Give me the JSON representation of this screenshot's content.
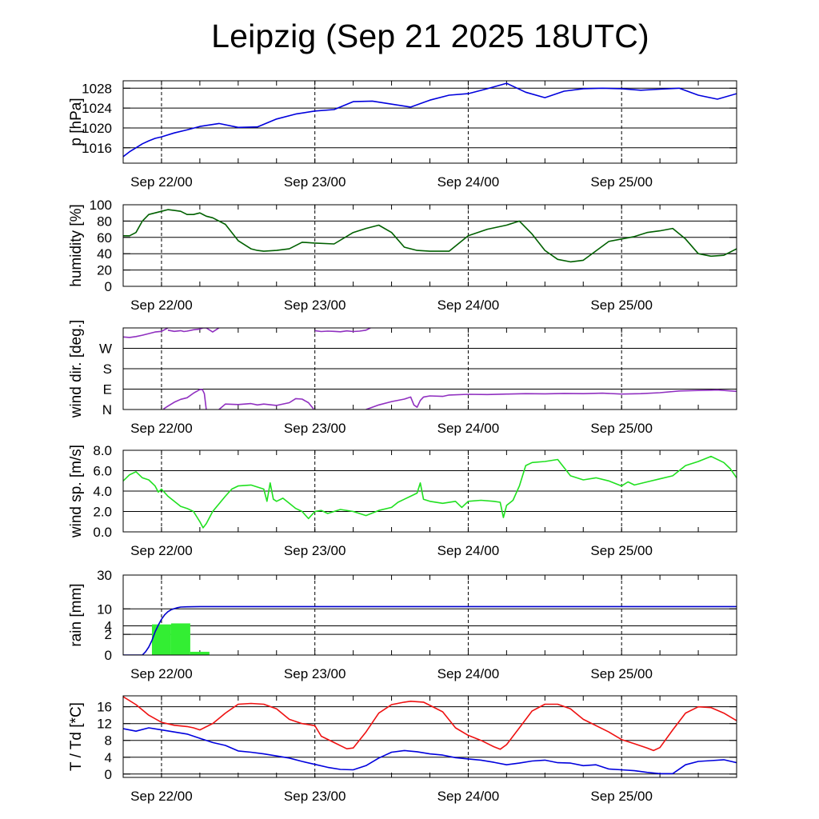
{
  "title": "Leipzig (Sep 21 2025 18UTC)",
  "time_axis": {
    "start_hours": 0,
    "end_hours": 96,
    "tick_labels": [
      {
        "label": "Sep 22/00",
        "hours": 6
      },
      {
        "label": "Sep 23/00",
        "hours": 30
      },
      {
        "label": "Sep 24/00",
        "hours": 54
      },
      {
        "label": "Sep 25/00",
        "hours": 78
      }
    ]
  },
  "chart_data": [
    {
      "id": "pressure",
      "type": "line",
      "ylabel": "p [hPa]",
      "ylim": [
        1012.9,
        1029.5
      ],
      "yticks": [
        1016,
        1020,
        1024,
        1028
      ],
      "ytick_labels": [
        "1016",
        "1020",
        "1024",
        "1028"
      ],
      "series": [
        {
          "name": "pressure",
          "color": "#0000dd",
          "x": [
            0,
            1,
            2,
            3,
            4,
            5,
            6,
            8,
            10,
            12,
            15,
            18,
            21,
            24,
            27,
            30,
            33,
            36,
            39,
            42,
            45,
            48,
            51,
            54,
            57,
            60,
            63,
            66,
            69,
            72,
            75,
            78,
            81,
            84,
            87,
            90,
            93,
            96
          ],
          "values": [
            1014.2,
            1015.2,
            1016.0,
            1016.8,
            1017.4,
            1017.9,
            1018.2,
            1019.0,
            1019.6,
            1020.3,
            1020.9,
            1020.1,
            1020.2,
            1021.8,
            1022.8,
            1023.4,
            1023.7,
            1025.3,
            1025.4,
            1024.8,
            1024.2,
            1025.6,
            1026.6,
            1026.9,
            1027.9,
            1029.0,
            1027.2,
            1026.1,
            1027.4,
            1027.9,
            1028.0,
            1027.9,
            1027.6,
            1027.8,
            1028.0,
            1026.6,
            1025.8,
            1026.9
          ]
        }
      ]
    },
    {
      "id": "humidity",
      "type": "line",
      "ylabel": "humidity [%]",
      "ylim": [
        0,
        100
      ],
      "yticks": [
        0,
        20,
        40,
        60,
        80,
        100
      ],
      "ytick_labels": [
        "0",
        "20",
        "40",
        "60",
        "80",
        "100"
      ],
      "series": [
        {
          "name": "humidity",
          "color": "#006000",
          "x": [
            0,
            1,
            2,
            3,
            4,
            6,
            7,
            8,
            9,
            10,
            11,
            12,
            13,
            14,
            16,
            18,
            20,
            21,
            22,
            24,
            26,
            28,
            30,
            33,
            36,
            38,
            40,
            42,
            44,
            46,
            48,
            51,
            54,
            57,
            60,
            62,
            64,
            66,
            68,
            70,
            72,
            76,
            80,
            82,
            84,
            86,
            88,
            90,
            92,
            94,
            96
          ],
          "values": [
            62,
            62,
            66,
            80,
            88,
            92,
            94,
            93,
            92,
            88,
            88,
            90,
            86,
            84,
            76,
            56,
            46,
            44,
            43,
            44,
            46,
            54,
            53,
            52,
            66,
            71,
            75,
            66,
            48,
            44,
            43,
            43,
            62,
            70,
            75,
            80,
            64,
            44,
            33,
            30,
            32,
            55,
            61,
            66,
            68,
            71,
            58,
            40,
            37,
            38,
            46
          ]
        }
      ]
    },
    {
      "id": "wind_direction",
      "type": "line",
      "ylabel": "wind dir. [deg.]",
      "ylim": [
        0,
        360
      ],
      "yticks": [
        0,
        90,
        180,
        270
      ],
      "ytick_labels": [
        "N",
        "E",
        "S",
        "W"
      ],
      "series": [
        {
          "name": "wind direction segment 1",
          "color": "#9030c0",
          "x": [
            0,
            1,
            2,
            3,
            4,
            5,
            6,
            7
          ],
          "values": [
            320,
            318,
            322,
            328,
            335,
            342,
            345,
            360
          ]
        },
        {
          "name": "wind direction segment 2",
          "color": "#9030c0",
          "x": [
            7,
            8,
            9,
            9.5,
            10,
            11,
            12,
            12.5,
            13
          ],
          "values": [
            350,
            345,
            348,
            344,
            346,
            352,
            355,
            360,
            360
          ]
        },
        {
          "name": "wind direction segment 3",
          "color": "#9030c0",
          "x": [
            13,
            14,
            15
          ],
          "values": [
            360,
            342,
            360
          ]
        },
        {
          "name": "wind direction segment 4",
          "color": "#9030c0",
          "x": [
            6.3,
            7,
            8,
            9,
            10,
            11,
            12,
            12.4,
            12.7,
            13
          ],
          "values": [
            2,
            15,
            32,
            45,
            52,
            72,
            88,
            88,
            70,
            0
          ]
        },
        {
          "name": "wind direction segment 5",
          "color": "#9030c0",
          "x": [
            15,
            16,
            18,
            20,
            21,
            22,
            24,
            26,
            27,
            28,
            29,
            29.8
          ],
          "values": [
            0,
            24,
            22,
            26,
            20,
            24,
            18,
            30,
            48,
            46,
            30,
            2
          ]
        },
        {
          "name": "wind direction segment 6",
          "color": "#9030c0",
          "x": [
            30,
            31,
            32,
            33,
            34,
            35,
            36,
            37,
            38,
            38.7
          ],
          "values": [
            348,
            344,
            346,
            345,
            343,
            347,
            344,
            346,
            350,
            360
          ]
        },
        {
          "name": "wind direction segment 7",
          "color": "#9030c0",
          "x": [
            38,
            40,
            42,
            44,
            45,
            45.5,
            46,
            46.5,
            47,
            48,
            50,
            51,
            54,
            57,
            60,
            63,
            66,
            69,
            72,
            75,
            78,
            81,
            84,
            87,
            90,
            93,
            96
          ],
          "values": [
            0,
            20,
            35,
            46,
            55,
            20,
            10,
            40,
            55,
            60,
            58,
            64,
            67,
            66,
            68,
            70,
            69,
            71,
            70,
            72,
            68,
            70,
            74,
            82,
            84,
            86,
            80
          ]
        }
      ]
    },
    {
      "id": "wind_speed",
      "type": "line",
      "ylabel": "wind sp. [m/s]",
      "ylim": [
        0,
        8.0
      ],
      "yticks": [
        0,
        2,
        4,
        6,
        8
      ],
      "ytick_labels": [
        "0.0",
        "2.0",
        "4.0",
        "6.0",
        "8.0"
      ],
      "series": [
        {
          "name": "wind speed",
          "color": "#20e020",
          "x": [
            0,
            1,
            2,
            3,
            4,
            5,
            5.5,
            6,
            7,
            8,
            9,
            10,
            11,
            12,
            12.5,
            13,
            14,
            16,
            17,
            18,
            20,
            22,
            22.5,
            23,
            23.5,
            24,
            25,
            26,
            27,
            28,
            29,
            30,
            31,
            32,
            34,
            36,
            38,
            40,
            42,
            43,
            44,
            45,
            46,
            46.5,
            47,
            48,
            50,
            52,
            53,
            54,
            56,
            58,
            59,
            59.5,
            60,
            61,
            62,
            63,
            64,
            66,
            68,
            70,
            72,
            74,
            76,
            78,
            79,
            80,
            82,
            84,
            86,
            88,
            90,
            92,
            94,
            95,
            96
          ],
          "values": [
            5.0,
            5.6,
            5.9,
            5.3,
            5.1,
            4.5,
            3.9,
            4.2,
            3.5,
            3.0,
            2.5,
            2.3,
            2.0,
            1.0,
            0.4,
            0.8,
            2.0,
            3.5,
            4.2,
            4.5,
            4.6,
            4.2,
            3.0,
            4.8,
            3.2,
            3.0,
            3.3,
            2.8,
            2.3,
            2.0,
            1.3,
            2.0,
            2.1,
            1.8,
            2.2,
            2.0,
            1.6,
            2.1,
            2.4,
            2.9,
            3.2,
            3.5,
            3.8,
            4.8,
            3.2,
            3.0,
            2.8,
            3.0,
            2.4,
            3.0,
            3.1,
            3.0,
            2.9,
            1.4,
            2.6,
            3.1,
            4.5,
            6.5,
            6.8,
            6.9,
            7.1,
            5.5,
            5.1,
            5.3,
            5.0,
            4.5,
            4.9,
            4.6,
            4.9,
            5.2,
            5.5,
            6.5,
            6.9,
            7.4,
            6.8,
            6.2,
            5.3
          ]
        }
      ]
    },
    {
      "id": "rain",
      "type": "bar",
      "ylabel": "rain [mm]",
      "scale": "sqrt",
      "ylim": [
        0,
        30
      ],
      "yticks": [
        0,
        2,
        4,
        10,
        30
      ],
      "ytick_labels": [
        "0",
        "2",
        "4",
        "10",
        "30"
      ],
      "bars": {
        "color": "#33ee33",
        "x_start": [
          4.5,
          7.5,
          10.5
        ],
        "x_end": [
          7.5,
          10.5,
          13.5
        ],
        "values": [
          4.4,
          4.7,
          0.05
        ]
      },
      "series": [
        {
          "name": "accumulated rain",
          "color": "#0000cc",
          "x": [
            0,
            3,
            3.5,
            4,
            4.5,
            5,
            5.5,
            6,
            6.5,
            7,
            7.5,
            8,
            8.5,
            9,
            10,
            12,
            18,
            96
          ],
          "values": [
            0,
            0,
            0.05,
            0.3,
            1.0,
            2.5,
            4.2,
            6.0,
            7.6,
            8.8,
            9.6,
            10.1,
            10.5,
            10.8,
            10.9,
            11.0,
            11.0,
            11.0
          ]
        }
      ]
    },
    {
      "id": "temperature",
      "type": "line",
      "ylabel": "T / Td [*C]",
      "ylim": [
        -0.8,
        18.6
      ],
      "yticks": [
        0,
        4,
        8,
        12,
        16
      ],
      "ytick_labels": [
        "0",
        "4",
        "8",
        "12",
        "16"
      ],
      "series": [
        {
          "name": "temperature",
          "color": "#ee1111",
          "x": [
            0,
            2,
            4,
            6,
            8,
            10,
            11,
            12,
            14,
            16,
            18,
            20,
            22,
            24,
            26,
            28,
            30,
            31,
            33,
            35,
            36,
            38,
            40,
            42,
            44,
            45,
            47,
            50,
            52,
            54,
            56,
            58,
            59,
            60,
            62,
            64,
            66,
            68,
            70,
            72,
            76,
            78,
            80,
            82,
            83,
            84,
            86,
            88,
            90,
            92,
            94,
            96
          ],
          "values": [
            18.4,
            16.5,
            14.0,
            12.3,
            11.6,
            11.3,
            11.0,
            10.5,
            12.0,
            14.5,
            16.6,
            16.8,
            16.6,
            15.5,
            13.0,
            12.0,
            11.5,
            9.0,
            7.5,
            6.0,
            6.2,
            10.0,
            14.5,
            16.5,
            17.1,
            17.3,
            17.1,
            14.8,
            11.0,
            9.2,
            8.0,
            6.5,
            5.9,
            7.0,
            11.0,
            15.0,
            16.6,
            16.6,
            15.5,
            13.0,
            10.0,
            8.2,
            7.2,
            6.2,
            5.6,
            6.3,
            10.5,
            14.5,
            16.0,
            15.8,
            14.5,
            12.7
          ]
        },
        {
          "name": "dew point",
          "color": "#0000dd",
          "x": [
            0,
            2,
            4,
            6,
            8,
            10,
            12,
            14,
            16,
            18,
            20,
            22,
            24,
            26,
            28,
            30,
            32,
            34,
            36,
            38,
            40,
            42,
            44,
            46,
            48,
            50,
            52,
            54,
            56,
            58,
            60,
            62,
            64,
            66,
            68,
            70,
            72,
            74,
            76,
            78,
            80,
            82,
            84,
            86,
            88,
            90,
            92,
            94,
            96
          ],
          "values": [
            10.8,
            10.2,
            11.0,
            10.5,
            10.0,
            9.5,
            8.5,
            7.5,
            6.8,
            5.5,
            5.2,
            4.8,
            4.3,
            3.8,
            3.0,
            2.3,
            1.6,
            1.1,
            1.0,
            2.0,
            3.8,
            5.2,
            5.6,
            5.3,
            4.8,
            4.5,
            3.9,
            3.6,
            3.3,
            2.8,
            2.2,
            2.6,
            3.1,
            3.3,
            2.7,
            2.6,
            2.0,
            2.2,
            1.2,
            1.0,
            0.8,
            0.4,
            0.1,
            0.1,
            2.2,
            3.0,
            3.2,
            3.4,
            2.7
          ]
        }
      ]
    }
  ]
}
